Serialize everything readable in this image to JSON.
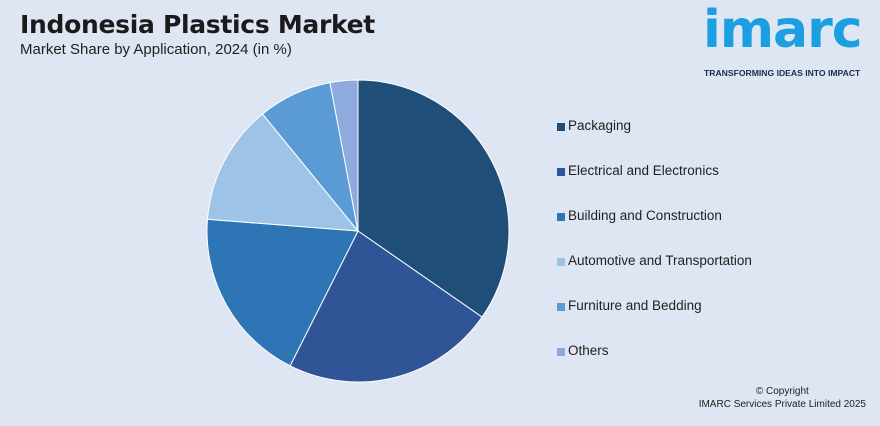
{
  "header": {
    "title": "Indonesia Plastics Market",
    "subtitle": "Market Share by Application, 2024 (in %)"
  },
  "logo": {
    "word": "imarc",
    "tagline": "TRANSFORMING IDEAS INTO IMPACT",
    "color": "#1b9fe0"
  },
  "chart_data": {
    "type": "pie",
    "title": "Indonesia Plastics Market",
    "subtitle": "Market Share by Application, 2024 (in %)",
    "categories": [
      "Packaging",
      "Electrical and Electronics",
      "Building and Construction",
      "Automotive and Transportation",
      "Furniture and Bedding",
      "Others"
    ],
    "values": [
      35,
      23,
      19,
      13,
      8,
      3
    ],
    "colors": [
      "#1f4e79",
      "#2f5597",
      "#2e75b6",
      "#9dc3e6",
      "#5b9bd5",
      "#8faadc"
    ],
    "legend_position": "right"
  },
  "legend": {
    "items": [
      {
        "label": "Packaging",
        "color": "#1f4e79"
      },
      {
        "label": "Electrical and Electronics",
        "color": "#2f5597"
      },
      {
        "label": "Building and Construction",
        "color": "#2e75b6"
      },
      {
        "label": "Automotive and Transportation",
        "color": "#9dc3e6"
      },
      {
        "label": "Furniture and Bedding",
        "color": "#5b9bd5"
      },
      {
        "label": "Others",
        "color": "#8faadc"
      }
    ]
  },
  "footer": {
    "copyright_line1": "© Copyright",
    "copyright_line2": "IMARC Services Private Limited 2025"
  }
}
